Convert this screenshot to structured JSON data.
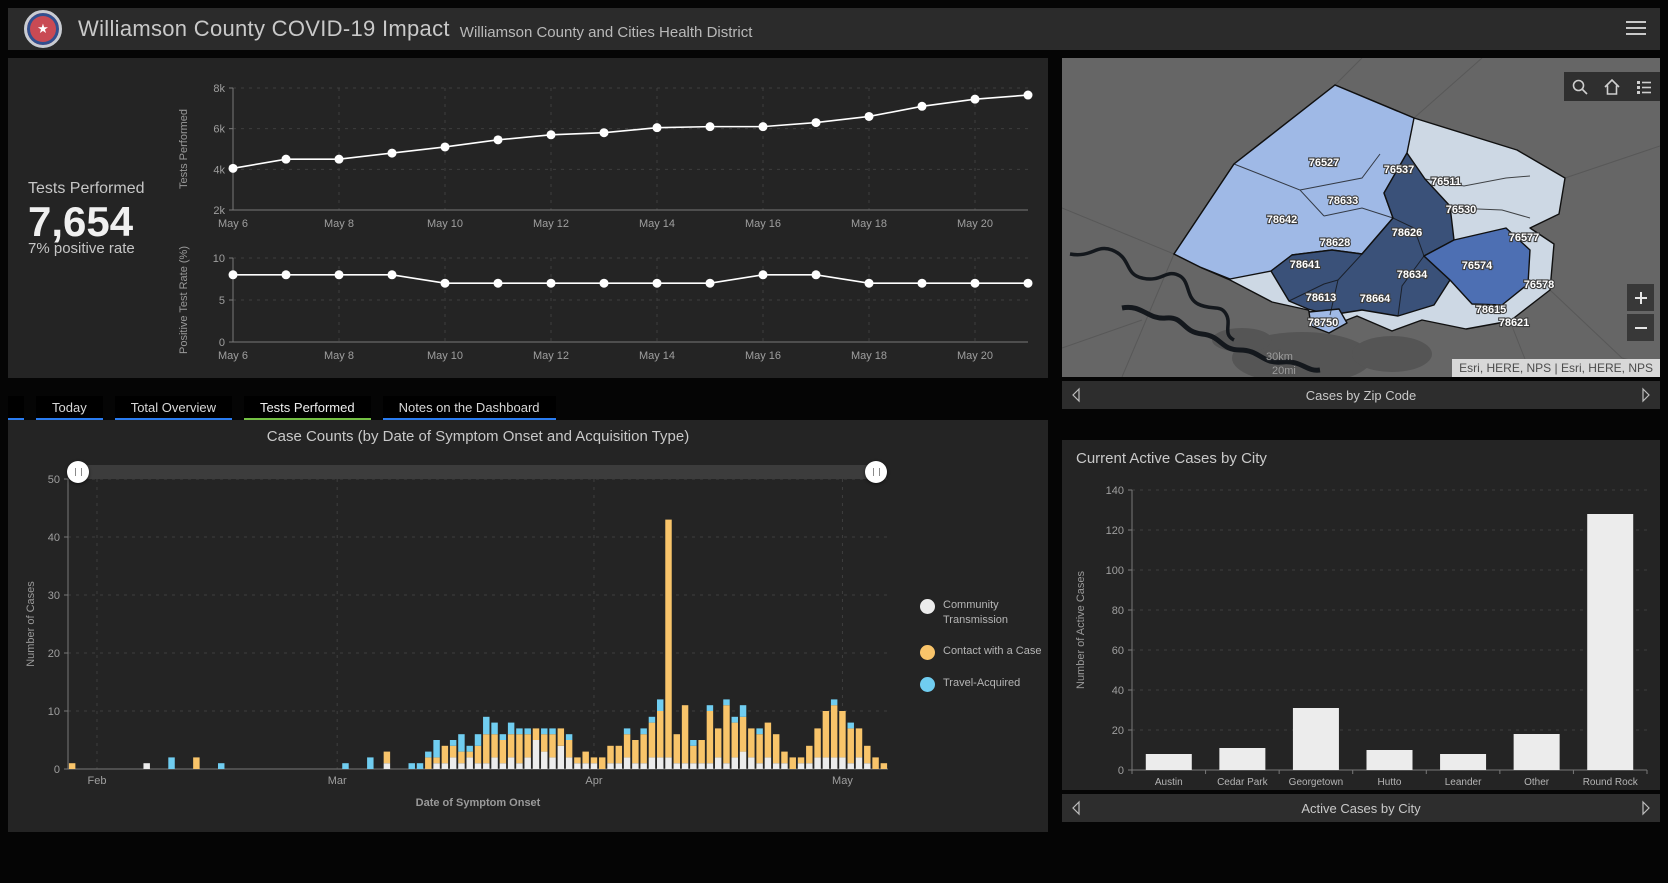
{
  "header": {
    "title": "Williamson County COVID-19 Impact",
    "subtitle": "Williamson County and Cities Health District"
  },
  "stat": {
    "label": "Tests Performed",
    "value": "7,654",
    "sub": "7% positive rate"
  },
  "tabs": [
    {
      "label": "Today",
      "active": false
    },
    {
      "label": "Total Overview",
      "active": false
    },
    {
      "label": "Tests Performed",
      "active": true
    },
    {
      "label": "Notes on the Dashboard",
      "active": false
    }
  ],
  "colors": {
    "line": "#ffffff",
    "community": "#ececec",
    "contact": "#f8c46a",
    "travel": "#70cdf0",
    "tab_underline": "#2a7cf0",
    "tab_active_underline": "#74c044",
    "map_light": "#9fb9e6",
    "map_medium": "#4d6fb3",
    "map_dark": "#3a5179",
    "map_pale": "#cdd8e4"
  },
  "legend": [
    {
      "label": "Community Transmission",
      "color_key": "community"
    },
    {
      "label": "Contact with a Case",
      "color_key": "contact"
    },
    {
      "label": "Travel-Acquired",
      "color_key": "travel"
    }
  ],
  "map": {
    "footer": "Cases by Zip Code",
    "attribution": "Esri, HERE, NPS | Esri, HERE, NPS",
    "scale_km": "30km",
    "scale_mi": "20mi",
    "zips": [
      {
        "code": "76527",
        "shade": "light"
      },
      {
        "code": "76537",
        "shade": "light"
      },
      {
        "code": "76511",
        "shade": "pale"
      },
      {
        "code": "78633",
        "shade": "light"
      },
      {
        "code": "76530",
        "shade": "pale"
      },
      {
        "code": "78642",
        "shade": "light"
      },
      {
        "code": "78626",
        "shade": "dark"
      },
      {
        "code": "76577",
        "shade": "pale"
      },
      {
        "code": "78628",
        "shade": "light"
      },
      {
        "code": "76574",
        "shade": "medium"
      },
      {
        "code": "78641",
        "shade": "dark"
      },
      {
        "code": "78634",
        "shade": "dark"
      },
      {
        "code": "76578",
        "shade": "pale"
      },
      {
        "code": "78613",
        "shade": "dark"
      },
      {
        "code": "78664",
        "shade": "dark"
      },
      {
        "code": "78615",
        "shade": "pale"
      },
      {
        "code": "78750",
        "shade": "light"
      },
      {
        "code": "78621",
        "shade": "pale"
      }
    ]
  },
  "city_footer": "Active Cases by City",
  "chart_data": [
    {
      "id": "tests_performed",
      "type": "line",
      "ylabel": "Tests Performed",
      "ylim": [
        2000,
        8000
      ],
      "yticks": [
        {
          "v": 2000,
          "label": "2k"
        },
        {
          "v": 4000,
          "label": "4k"
        },
        {
          "v": 6000,
          "label": "6k"
        },
        {
          "v": 8000,
          "label": "8k"
        }
      ],
      "x": [
        "May 6",
        "May 7",
        "May 8",
        "May 9",
        "May 10",
        "May 11",
        "May 12",
        "May 13",
        "May 14",
        "May 15",
        "May 16",
        "May 17",
        "May 18",
        "May 19",
        "May 20",
        "May 21"
      ],
      "xticks": [
        0,
        2,
        4,
        6,
        8,
        10,
        12,
        14
      ],
      "values": [
        4050,
        4500,
        4500,
        4800,
        5100,
        5450,
        5700,
        5800,
        6050,
        6100,
        6100,
        6300,
        6600,
        7100,
        7450,
        7654
      ]
    },
    {
      "id": "positive_rate",
      "type": "line",
      "ylabel": "Positive Test Rate (%)",
      "ylim": [
        0,
        10
      ],
      "yticks": [
        {
          "v": 0,
          "label": "0"
        },
        {
          "v": 5,
          "label": "5"
        },
        {
          "v": 10,
          "label": "10"
        }
      ],
      "x": [
        "May 6",
        "May 7",
        "May 8",
        "May 9",
        "May 10",
        "May 11",
        "May 12",
        "May 13",
        "May 14",
        "May 15",
        "May 16",
        "May 17",
        "May 18",
        "May 19",
        "May 20",
        "May 21"
      ],
      "xticks": [
        0,
        2,
        4,
        6,
        8,
        10,
        12,
        14
      ],
      "values": [
        8,
        8,
        8,
        8,
        7,
        7,
        7,
        7,
        7,
        7,
        8,
        8,
        7,
        7,
        7,
        7
      ]
    },
    {
      "id": "case_counts",
      "type": "stacked_bar",
      "title": "Case Counts (by Date of Symptom Onset and Acquisition Type)",
      "xlabel": "Date of Symptom Onset",
      "ylabel": "Number of Cases",
      "ylim": [
        0,
        50
      ],
      "yticks": [
        0,
        10,
        20,
        30,
        40,
        50
      ],
      "month_ticks": [
        {
          "index": 3,
          "label": "Feb"
        },
        {
          "index": 32,
          "label": "Mar"
        },
        {
          "index": 63,
          "label": "Apr"
        },
        {
          "index": 93,
          "label": "May"
        }
      ],
      "series": [
        {
          "name": "Community Transmission",
          "values": [
            0,
            0,
            0,
            0,
            0,
            0,
            0,
            0,
            0,
            1,
            0,
            0,
            0,
            0,
            0,
            0,
            0,
            0,
            0,
            0,
            0,
            0,
            0,
            0,
            0,
            0,
            0,
            0,
            0,
            0,
            0,
            0,
            0,
            0,
            0,
            0,
            0,
            0,
            1,
            0,
            0,
            0,
            0,
            0,
            1,
            1,
            2,
            1,
            2,
            1,
            1,
            2,
            1,
            2,
            1,
            2,
            5,
            3,
            2,
            4,
            2,
            1,
            1,
            1,
            0,
            1,
            1,
            2,
            1,
            1,
            2,
            2,
            2,
            1,
            1,
            1,
            1,
            1,
            2,
            1,
            2,
            3,
            2,
            1,
            2,
            1,
            1,
            0,
            1,
            1,
            2,
            2,
            2,
            2,
            1,
            2,
            1,
            0,
            0
          ]
        },
        {
          "name": "Contact with a Case",
          "values": [
            1,
            0,
            0,
            0,
            0,
            0,
            0,
            0,
            0,
            0,
            0,
            0,
            0,
            0,
            0,
            2,
            0,
            0,
            0,
            0,
            0,
            0,
            0,
            0,
            0,
            0,
            0,
            0,
            0,
            0,
            0,
            0,
            0,
            0,
            0,
            0,
            0,
            0,
            2,
            0,
            0,
            0,
            0,
            2,
            1,
            3,
            2,
            2,
            1,
            3,
            5,
            4,
            4,
            4,
            5,
            4,
            2,
            3,
            4,
            3,
            3,
            1,
            2,
            1,
            2,
            3,
            3,
            4,
            4,
            5,
            6,
            8,
            41,
            5,
            10,
            3,
            4,
            9,
            5,
            10,
            6,
            6,
            5,
            5,
            6,
            5,
            2,
            2,
            1,
            3,
            5,
            8,
            9,
            8,
            6,
            5,
            3,
            2,
            1
          ]
        },
        {
          "name": "Travel-Acquired",
          "values": [
            0,
            0,
            0,
            0,
            0,
            0,
            0,
            0,
            0,
            0,
            0,
            0,
            2,
            0,
            0,
            0,
            0,
            0,
            1,
            0,
            0,
            0,
            0,
            0,
            0,
            0,
            0,
            0,
            0,
            0,
            0,
            0,
            0,
            1,
            0,
            0,
            2,
            0,
            0,
            0,
            0,
            1,
            1,
            1,
            3,
            0,
            1,
            3,
            1,
            2,
            3,
            2,
            1,
            2,
            1,
            1,
            0,
            1,
            1,
            0,
            1,
            0,
            0,
            0,
            0,
            0,
            0,
            1,
            0,
            1,
            1,
            2,
            0,
            0,
            0,
            1,
            0,
            1,
            0,
            1,
            1,
            2,
            0,
            1,
            0,
            0,
            0,
            0,
            0,
            0,
            0,
            0,
            1,
            0,
            1,
            0,
            0,
            0,
            0
          ]
        }
      ]
    },
    {
      "id": "active_cases_by_city",
      "type": "bar",
      "title": "Current Active Cases by City",
      "ylabel": "Number of Active Cases",
      "ylim": [
        0,
        140
      ],
      "ytick_step": 20,
      "categories": [
        "Austin",
        "Cedar Park",
        "Georgetown",
        "Hutto",
        "Leander",
        "Other",
        "Round Rock"
      ],
      "values": [
        8,
        11,
        31,
        10,
        8,
        18,
        128
      ]
    }
  ]
}
